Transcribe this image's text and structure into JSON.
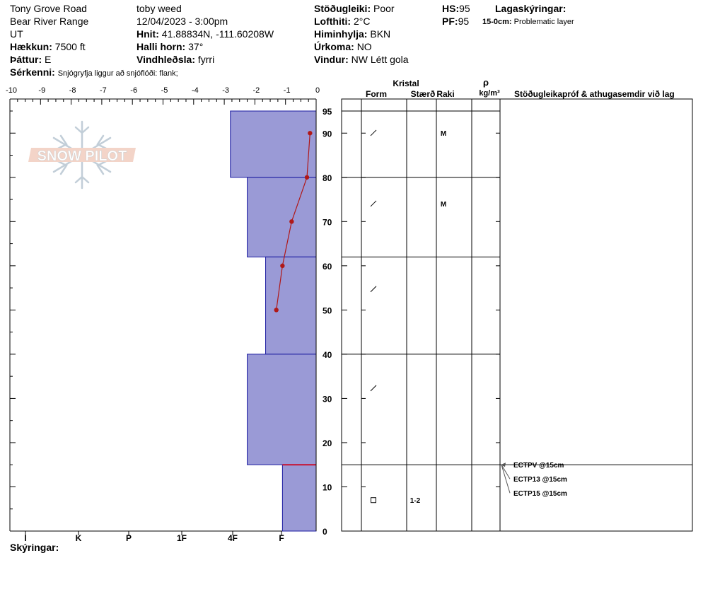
{
  "header": {
    "location": "Tony Grove Road",
    "range": "Bear River Range",
    "state": "UT",
    "elevation_label": "Hækkun:",
    "elevation_value": "7500 ft",
    "aspect_label": "Þáttur:",
    "aspect_value": "E",
    "features_label": "Sérkenni:",
    "features_value": "Snjógryfja liggur að snjóflóði: flank;",
    "observer": "toby weed",
    "datetime": "12/04/2023 - 3:00pm",
    "coords_label": "Hnit:",
    "coords_value": "41.88834N, -111.60208W",
    "slope_label": "Halli horn:",
    "slope_value": "37°",
    "wind_loading_label": "Vindhleðsla:",
    "wind_loading_value": "fyrri",
    "stability_label": "Stöðugleiki:",
    "stability_value": "Poor",
    "air_temp_label": "Lofthiti:",
    "air_temp_value": "2°C",
    "sky_label": "Himinhylja:",
    "sky_value": "BKN",
    "precip_label": "Úrkoma:",
    "precip_value": "NO",
    "wind_label": "Vindur:",
    "wind_value": "NW Létt gola",
    "hs_label": "HS:",
    "hs_value": "95",
    "pf_label": "PF:",
    "pf_value": "95",
    "legend_label": "Lagaskýringar:",
    "legend_entry_depth": "15-0cm:",
    "legend_entry_text": "Problematic layer",
    "notes_label": "Skýringar:"
  },
  "columns": {
    "crystal_label": "Kristal",
    "form_label": "Form",
    "size_label": "Stærð",
    "moisture_label": "Raki",
    "density_symbol": "ρ",
    "density_unit": "kg/m³",
    "tests_label": "Stöðugleikapróf & athugasemdir við lag"
  },
  "colors": {
    "layer_fill": "#9a9ad6",
    "layer_stroke": "#1a1aa0",
    "temp_line": "#b01818",
    "problem_layer": "#c8102e"
  },
  "chart_data": {
    "type": "snow_profile",
    "temp_axis": {
      "min": -10,
      "max": 0,
      "ticks": [
        "-10",
        "-9",
        "-8",
        "-7",
        "-6",
        "-5",
        "-4",
        "-3",
        "-2",
        "-1",
        "0"
      ]
    },
    "depth_axis": {
      "min": 0,
      "max": 95,
      "ticks": [
        "95",
        "90",
        "80",
        "70",
        "60",
        "50",
        "40",
        "30",
        "20",
        "10",
        "0"
      ]
    },
    "hardness_axis": {
      "labels": [
        "I",
        "K",
        "P",
        "1F",
        "4F",
        "F"
      ]
    },
    "layers": [
      {
        "top": 95,
        "bottom": 80,
        "hardness_temp": -2.8,
        "form": "/",
        "size": "",
        "moisture": "M"
      },
      {
        "top": 80,
        "bottom": 62,
        "hardness_temp": -2.25,
        "form": "/",
        "size": "",
        "moisture": "M"
      },
      {
        "top": 62,
        "bottom": 40,
        "hardness_temp": -1.65,
        "form": "/",
        "size": "",
        "moisture": ""
      },
      {
        "top": 40,
        "bottom": 15,
        "hardness_temp": -2.25,
        "form": "/",
        "size": "",
        "moisture": ""
      },
      {
        "top": 15,
        "bottom": 0,
        "hardness_temp": -1.1,
        "form": "□",
        "size": "1-2",
        "moisture": ""
      }
    ],
    "temperature_profile": [
      {
        "depth": 90,
        "temp": -0.2
      },
      {
        "depth": 80,
        "temp": -0.3
      },
      {
        "depth": 70,
        "temp": -0.8
      },
      {
        "depth": 60,
        "temp": -1.1
      },
      {
        "depth": 50,
        "temp": -1.3
      }
    ],
    "problem_layer_depth": 15,
    "tests": [
      {
        "depth": 15,
        "label": "ECTPV @15cm"
      },
      {
        "depth": 15,
        "label": "ECTP13 @15cm"
      },
      {
        "depth": 15,
        "label": "ECTP15 @15cm"
      }
    ]
  }
}
